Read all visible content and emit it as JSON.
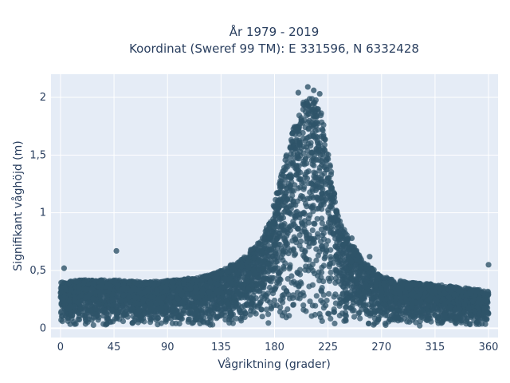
{
  "chart_data": {
    "type": "scatter",
    "title_line1": "År 1979 - 2019",
    "title_line2": "Koordinat (Sweref 99 TM): E 331596, N 6332428",
    "xlabel": "Vågriktning (grader)",
    "ylabel": "Signifikant våghöjd (m)",
    "xlim": [
      -8,
      368
    ],
    "ylim": [
      -0.08,
      2.2
    ],
    "x_ticks": [
      0,
      45,
      90,
      135,
      180,
      225,
      270,
      315,
      360
    ],
    "x_tick_labels": [
      "0",
      "45",
      "90",
      "135",
      "180",
      "225",
      "270",
      "315",
      "360"
    ],
    "y_ticks": [
      0,
      0.5,
      1,
      1.5,
      2
    ],
    "y_tick_labels": [
      "0",
      "0,5",
      "1",
      "1,5",
      "2"
    ],
    "grid": true,
    "marker_color": "#2f5469",
    "plot_background": "#e5ecf6",
    "envelope": {
      "description_x": [
        0,
        20,
        45,
        70,
        100,
        125,
        150,
        165,
        175,
        185,
        195,
        203,
        210,
        218,
        225,
        232,
        240,
        255,
        270,
        290,
        315,
        340,
        360
      ],
      "upper": [
        0.4,
        0.42,
        0.42,
        0.4,
        0.42,
        0.46,
        0.58,
        0.72,
        0.9,
        1.3,
        1.7,
        1.95,
        2.02,
        1.95,
        1.55,
        1.05,
        0.82,
        0.58,
        0.45,
        0.4,
        0.38,
        0.35,
        0.32
      ],
      "lower": [
        0.02,
        0.02,
        0.02,
        0.02,
        0.02,
        0.02,
        0.02,
        0.02,
        0.02,
        0.02,
        0.02,
        0.02,
        0.02,
        0.02,
        0.02,
        0.02,
        0.02,
        0.02,
        0.02,
        0.02,
        0.02,
        0.02,
        0.02
      ]
    },
    "notable_points": [
      {
        "x": 47,
        "y": 0.67
      },
      {
        "x": 3,
        "y": 0.52
      },
      {
        "x": 360,
        "y": 0.55
      },
      {
        "x": 208,
        "y": 2.09
      },
      {
        "x": 213,
        "y": 2.06
      },
      {
        "x": 200,
        "y": 2.04
      },
      {
        "x": 218,
        "y": 2.03
      },
      {
        "x": 245,
        "y": 0.78
      },
      {
        "x": 260,
        "y": 0.62
      },
      {
        "x": 170,
        "y": 0.78
      },
      {
        "x": 160,
        "y": 0.68
      }
    ]
  }
}
